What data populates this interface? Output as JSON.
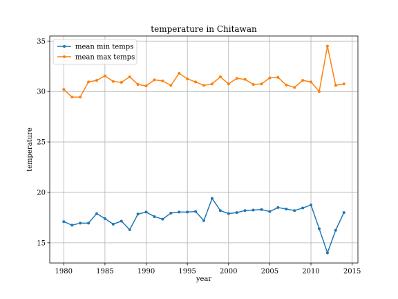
{
  "chart_data": {
    "type": "line",
    "title": "temperature in Chitawan",
    "xlabel": "year",
    "ylabel": "temperature",
    "xlim": [
      1978.3,
      2015.7
    ],
    "ylim": [
      13.0,
      35.5
    ],
    "xticks": [
      1980,
      1985,
      1990,
      1995,
      2000,
      2005,
      2010,
      2015
    ],
    "yticks": [
      15,
      20,
      25,
      30,
      35
    ],
    "grid": true,
    "legend_position": "top-left",
    "x": [
      1980,
      1981,
      1982,
      1983,
      1984,
      1985,
      1986,
      1987,
      1988,
      1989,
      1990,
      1991,
      1992,
      1993,
      1994,
      1995,
      1996,
      1997,
      1998,
      1999,
      2000,
      2001,
      2002,
      2003,
      2004,
      2005,
      2006,
      2007,
      2008,
      2009,
      2010,
      2011,
      2012,
      2013,
      2014
    ],
    "series": [
      {
        "name": "mean min temps",
        "color": "#1f77b4",
        "values": [
          17.1,
          16.75,
          16.95,
          16.95,
          17.9,
          17.4,
          16.85,
          17.15,
          16.3,
          17.85,
          18.05,
          17.6,
          17.35,
          17.95,
          18.05,
          18.05,
          18.1,
          17.2,
          19.4,
          18.2,
          17.9,
          18.0,
          18.2,
          18.25,
          18.3,
          18.1,
          18.5,
          18.35,
          18.2,
          18.45,
          18.75,
          16.4,
          14.0,
          16.25,
          18.0
        ]
      },
      {
        "name": "mean max temps",
        "color": "#ff7f0e",
        "values": [
          30.2,
          29.45,
          29.45,
          30.95,
          31.1,
          31.55,
          31.0,
          30.9,
          31.45,
          30.7,
          30.55,
          31.15,
          31.05,
          30.6,
          31.8,
          31.25,
          30.95,
          30.6,
          30.75,
          31.45,
          30.75,
          31.3,
          31.2,
          30.7,
          30.75,
          31.35,
          31.4,
          30.65,
          30.4,
          31.1,
          30.95,
          30.0,
          34.5,
          30.6,
          30.75
        ]
      }
    ]
  }
}
